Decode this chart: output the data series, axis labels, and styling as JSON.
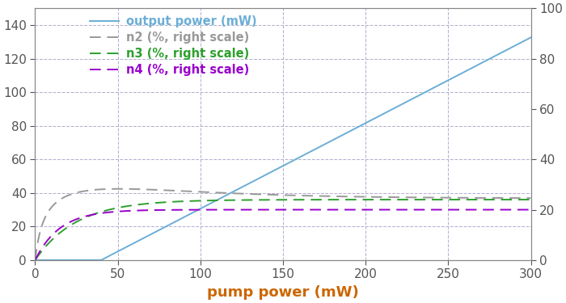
{
  "xlabel": "pump power (mW)",
  "xlim": [
    0,
    300
  ],
  "ylim_left": [
    0,
    150
  ],
  "ylim_right": [
    0,
    100
  ],
  "yticks_left": [
    0,
    20,
    40,
    60,
    80,
    100,
    120,
    140
  ],
  "yticks_right": [
    0,
    20,
    40,
    60,
    80,
    100
  ],
  "xticks": [
    0,
    50,
    100,
    150,
    200,
    250,
    300
  ],
  "bg_color": "#ffffff",
  "grid_color": "#aaaacc",
  "legend_labels": [
    "output power (mW)",
    "n2 (%, right scale)",
    "n3 (%, right scale)",
    "n4 (%, right scale)"
  ],
  "line_colors": [
    "#6baed6",
    "#999999",
    "#2ca02c",
    "#9900cc"
  ],
  "legend_text_colors": [
    "#6baed6",
    "#999999",
    "#2ca02c",
    "#9900cc"
  ],
  "ax_label_color": "#cc6600",
  "tick_color": "#555555",
  "spine_color": "#888888",
  "output_threshold": 40,
  "output_slope": 0.51,
  "n2_peak": 30,
  "n2_peak_pump": 25,
  "n2_settle": 24.5,
  "n3_settle": 24.0,
  "n3_rise_tau": 25,
  "n4_settle": 20.0,
  "n4_rise_tau": 15,
  "line_width": 1.4,
  "dash_pattern": [
    7,
    4
  ],
  "xlabel_fontsize": 13,
  "tick_fontsize": 11,
  "legend_fontsize": 10.5
}
